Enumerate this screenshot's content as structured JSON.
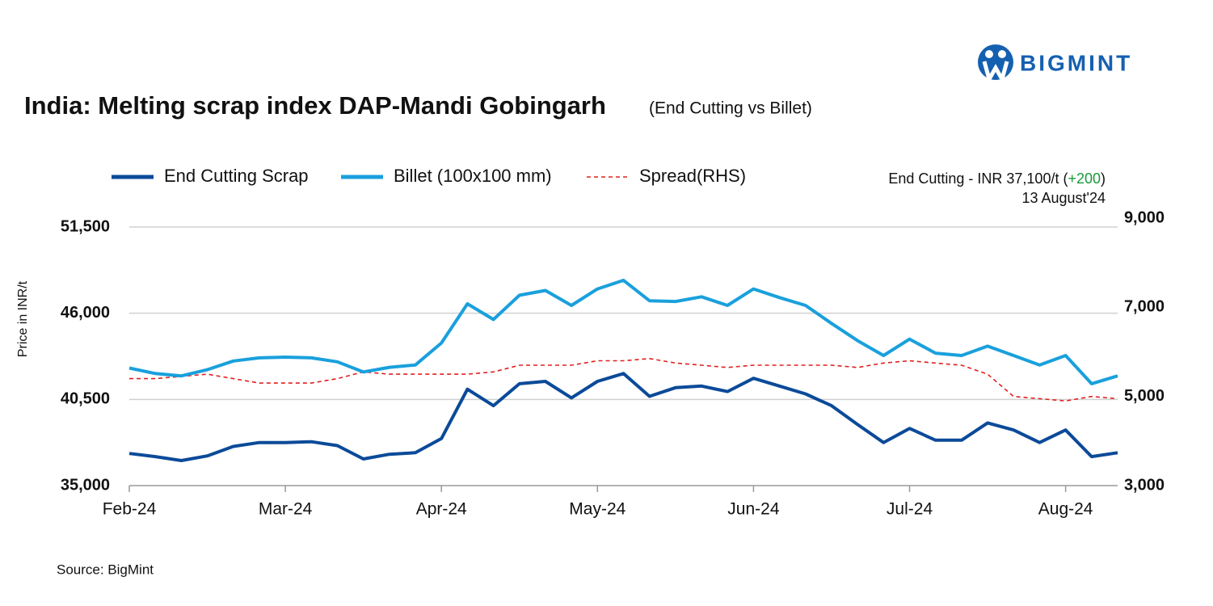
{
  "logo": "BIGMINT",
  "source": "Source: BigMint",
  "chart_data": {
    "type": "line",
    "title": "India: Melting scrap index DAP-Mandi Gobingarh",
    "subtitle": "(End Cutting vs Billet)",
    "y_label": "Price in INR/t",
    "annotation": {
      "text": "End Cutting - INR 37,100/t (",
      "change": "+200",
      "close": ")",
      "date": "13 August'24"
    },
    "categories": [
      "Feb-24",
      null,
      null,
      null,
      null,
      null,
      "Mar-24",
      null,
      null,
      null,
      null,
      null,
      "Apr-24",
      null,
      null,
      null,
      null,
      null,
      "May-24",
      null,
      null,
      null,
      null,
      null,
      "Jun-24",
      null,
      null,
      null,
      null,
      null,
      "Jul-24",
      null,
      null,
      null,
      null,
      null,
      "Aug-24",
      null,
      null
    ],
    "series": [
      {
        "name": "End Cutting Scrap",
        "color": "#0b4a99",
        "values": [
          37050,
          36850,
          36600,
          36900,
          37500,
          37750,
          37750,
          37800,
          37550,
          36700,
          37000,
          37100,
          38000,
          41150,
          40100,
          41500,
          41650,
          40600,
          41650,
          42150,
          40700,
          41250,
          41350,
          41000,
          41850,
          41350,
          40850,
          40100,
          38900,
          37750,
          38650,
          37900,
          37900,
          39000,
          38550,
          37750,
          38550,
          36850,
          37100
        ]
      },
      {
        "name": "Billet (100x100 mm)",
        "color": "#1aa0dc",
        "values": [
          42500,
          42150,
          42000,
          42400,
          42950,
          43150,
          43200,
          43150,
          42900,
          42250,
          42550,
          42700,
          44100,
          46600,
          45600,
          47150,
          47450,
          46500,
          47550,
          48100,
          46800,
          46750,
          47050,
          46500,
          47550,
          47000,
          46500,
          45350,
          44250,
          43300,
          44350,
          43450,
          43300,
          43900,
          43300,
          42700,
          43300,
          41500,
          42000
        ]
      },
      {
        "name": "Spread(RHS)",
        "color": "#e0201e",
        "axis": "y2",
        "dash": true,
        "values": [
          5400,
          5400,
          5450,
          5500,
          5400,
          5300,
          5300,
          5300,
          5400,
          5550,
          5500,
          5500,
          5500,
          5500,
          5550,
          5700,
          5700,
          5700,
          5800,
          5800,
          5850,
          5750,
          5700,
          5650,
          5700,
          5700,
          5700,
          5700,
          5650,
          5750,
          5800,
          5750,
          5700,
          5500,
          5000,
          4950,
          4900,
          5000,
          4950
        ]
      }
    ],
    "ylim": [
      35000,
      51500
    ],
    "yticks": [
      {
        "value": 35000,
        "label": "35,000"
      },
      {
        "value": 40500,
        "label": "40,500"
      },
      {
        "value": 46000,
        "label": "46,000"
      },
      {
        "value": 51500,
        "label": "51,500"
      }
    ],
    "y2lim": [
      3000,
      9000
    ],
    "y2ticks": [
      {
        "value": 3000,
        "label": "3,000"
      },
      {
        "value": 5000,
        "label": "5,000"
      },
      {
        "value": 7000,
        "label": "7,000"
      },
      {
        "value": 9000,
        "label": "9,000"
      }
    ],
    "grid": true
  }
}
